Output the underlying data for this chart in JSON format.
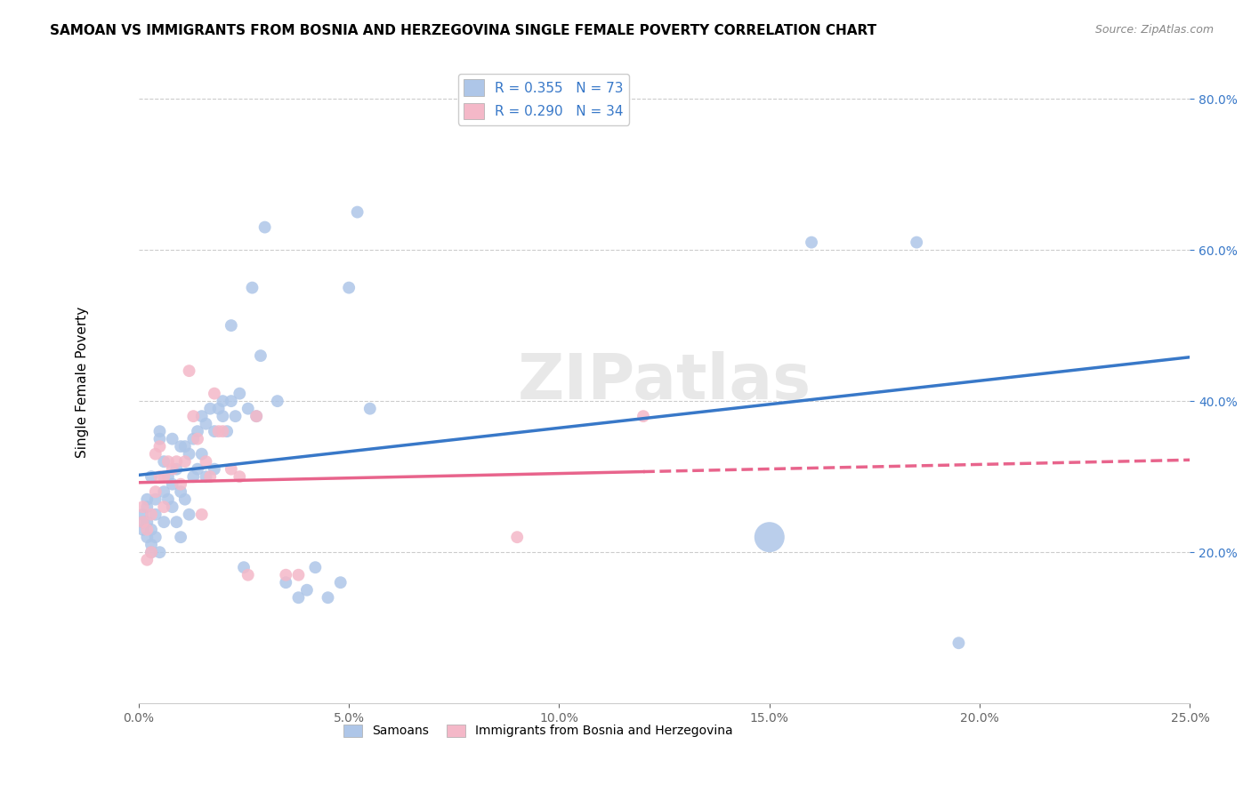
{
  "title": "SAMOAN VS IMMIGRANTS FROM BOSNIA AND HERZEGOVINA SINGLE FEMALE POVERTY CORRELATION CHART",
  "source": "Source: ZipAtlas.com",
  "ylabel_label": "Single Female Poverty",
  "xlim": [
    0.0,
    0.25
  ],
  "ylim": [
    0.0,
    0.85
  ],
  "watermark": "ZIPatlas",
  "samoans": {
    "R": 0.355,
    "N": 73,
    "color": "#aec6e8",
    "line_color": "#3878c8",
    "x": [
      0.001,
      0.001,
      0.001,
      0.002,
      0.002,
      0.002,
      0.002,
      0.003,
      0.003,
      0.003,
      0.003,
      0.004,
      0.004,
      0.004,
      0.005,
      0.005,
      0.005,
      0.006,
      0.006,
      0.006,
      0.007,
      0.007,
      0.008,
      0.008,
      0.008,
      0.009,
      0.009,
      0.01,
      0.01,
      0.01,
      0.011,
      0.011,
      0.012,
      0.012,
      0.013,
      0.013,
      0.014,
      0.014,
      0.015,
      0.015,
      0.016,
      0.016,
      0.017,
      0.018,
      0.018,
      0.019,
      0.02,
      0.02,
      0.021,
      0.022,
      0.022,
      0.023,
      0.024,
      0.025,
      0.026,
      0.027,
      0.028,
      0.029,
      0.03,
      0.033,
      0.035,
      0.038,
      0.04,
      0.042,
      0.045,
      0.048,
      0.05,
      0.052,
      0.055,
      0.15,
      0.16,
      0.185,
      0.195
    ],
    "y": [
      0.23,
      0.24,
      0.25,
      0.22,
      0.24,
      0.26,
      0.27,
      0.2,
      0.21,
      0.23,
      0.3,
      0.25,
      0.27,
      0.22,
      0.35,
      0.36,
      0.2,
      0.32,
      0.28,
      0.24,
      0.3,
      0.27,
      0.35,
      0.29,
      0.26,
      0.31,
      0.24,
      0.34,
      0.28,
      0.22,
      0.34,
      0.27,
      0.33,
      0.25,
      0.35,
      0.3,
      0.36,
      0.31,
      0.33,
      0.38,
      0.37,
      0.3,
      0.39,
      0.36,
      0.31,
      0.39,
      0.4,
      0.38,
      0.36,
      0.4,
      0.5,
      0.38,
      0.41,
      0.18,
      0.39,
      0.55,
      0.38,
      0.46,
      0.63,
      0.4,
      0.16,
      0.14,
      0.15,
      0.18,
      0.14,
      0.16,
      0.55,
      0.65,
      0.39,
      0.22,
      0.61,
      0.61,
      0.08
    ],
    "sizes": [
      20,
      20,
      20,
      20,
      20,
      20,
      20,
      20,
      20,
      20,
      20,
      20,
      20,
      20,
      20,
      20,
      20,
      20,
      20,
      20,
      20,
      20,
      20,
      20,
      20,
      20,
      20,
      20,
      20,
      20,
      20,
      20,
      20,
      20,
      20,
      20,
      20,
      20,
      20,
      20,
      20,
      20,
      20,
      20,
      20,
      20,
      20,
      20,
      20,
      20,
      20,
      20,
      20,
      20,
      20,
      20,
      20,
      20,
      20,
      20,
      20,
      20,
      20,
      20,
      20,
      20,
      20,
      20,
      20,
      120,
      20,
      20,
      20
    ]
  },
  "bosnia": {
    "R": 0.29,
    "N": 34,
    "color": "#f4b8c8",
    "line_color": "#e8648c",
    "x": [
      0.001,
      0.001,
      0.002,
      0.002,
      0.003,
      0.003,
      0.004,
      0.004,
      0.005,
      0.005,
      0.006,
      0.006,
      0.007,
      0.008,
      0.009,
      0.01,
      0.011,
      0.012,
      0.013,
      0.014,
      0.015,
      0.016,
      0.017,
      0.018,
      0.019,
      0.02,
      0.022,
      0.024,
      0.026,
      0.028,
      0.035,
      0.038,
      0.09,
      0.12
    ],
    "y": [
      0.24,
      0.26,
      0.23,
      0.19,
      0.25,
      0.2,
      0.33,
      0.28,
      0.34,
      0.3,
      0.3,
      0.26,
      0.32,
      0.31,
      0.32,
      0.29,
      0.32,
      0.44,
      0.38,
      0.35,
      0.25,
      0.32,
      0.3,
      0.41,
      0.36,
      0.36,
      0.31,
      0.3,
      0.17,
      0.38,
      0.17,
      0.17,
      0.22,
      0.38
    ],
    "sizes": [
      20,
      20,
      20,
      20,
      20,
      20,
      20,
      20,
      20,
      20,
      20,
      20,
      20,
      20,
      20,
      20,
      20,
      20,
      20,
      20,
      20,
      20,
      20,
      20,
      20,
      20,
      20,
      20,
      20,
      20,
      20,
      20,
      20,
      20
    ]
  }
}
